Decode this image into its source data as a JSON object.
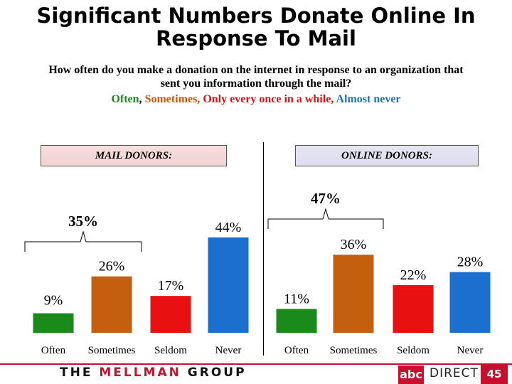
{
  "title_line1": "Significant Numbers Donate Online In",
  "title_line2": "Response To Mail",
  "question_line1": "How often do you make a donation on the internet in response to an organization that",
  "question_line2": "sent you information through the mail?",
  "legend": [
    {
      "text": "Often",
      "color": "#1a8a1a"
    },
    {
      "text": "Sometimes,",
      "color": "#d35400"
    },
    {
      "text": "Only every once in a while,",
      "color": "#e01010"
    },
    {
      "text": "Almost never",
      "color": "#1f6fbf"
    }
  ],
  "legend_separator": ", ",
  "footer": {
    "mellman_prefix": "THE ",
    "mellman_red": "MELLMAN",
    "mellman_suffix": " GROUP",
    "abc": "abc",
    "direct": "DIRECT",
    "page_number": "45"
  },
  "chart_data": [
    {
      "type": "bar",
      "panel_label": "MAIL DONORS:",
      "categories": [
        "Often",
        "Sometimes",
        "Seldom",
        "Never"
      ],
      "values": [
        9,
        26,
        17,
        44
      ],
      "value_labels": [
        "9%",
        "26%",
        "17%",
        "44%"
      ],
      "colors": [
        "#1a8a1a",
        "#c45f10",
        "#e81010",
        "#1a6fcf"
      ],
      "bracket": {
        "label": "35%",
        "spans": [
          "Often",
          "Sometimes"
        ]
      },
      "ylim": [
        0,
        50
      ]
    },
    {
      "type": "bar",
      "panel_label": "ONLINE DONORS:",
      "categories": [
        "Often",
        "Sometimes",
        "Seldom",
        "Never"
      ],
      "values": [
        11,
        36,
        22,
        28
      ],
      "value_labels": [
        "11%",
        "36%",
        "22%",
        "28%"
      ],
      "colors": [
        "#1a8a1a",
        "#c45f10",
        "#e81010",
        "#1a6fcf"
      ],
      "bracket": {
        "label": "47%",
        "spans": [
          "Often",
          "Sometimes"
        ]
      },
      "ylim": [
        0,
        50
      ]
    }
  ]
}
